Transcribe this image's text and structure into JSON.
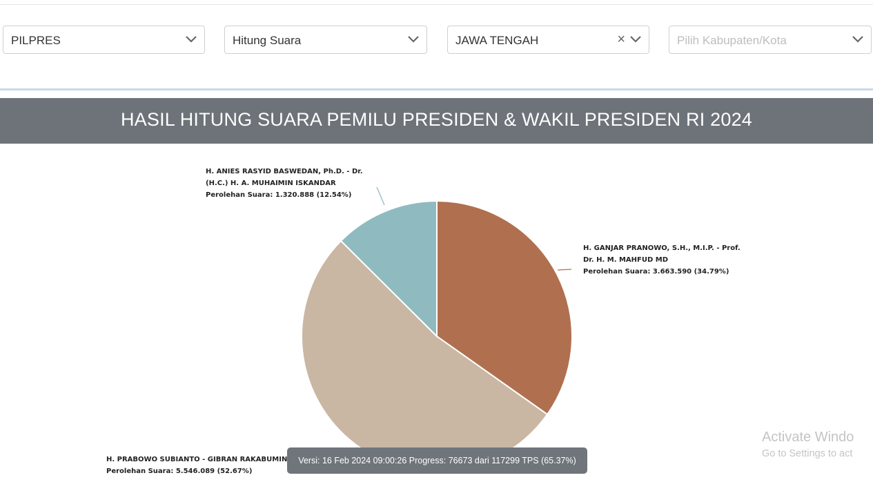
{
  "filters": {
    "election_type": "PILPRES",
    "count_type": "Hitung Suara",
    "province": "JAWA TENGAH",
    "regency_placeholder": "Pilih Kabupaten/Kota"
  },
  "header": {
    "title": "HASIL HITUNG SUARA PEMILU PRESIDEN & WAKIL PRESIDEN RI 2024"
  },
  "chart_data": {
    "type": "pie",
    "title": "HASIL HITUNG SUARA PEMILU PRESIDEN & WAKIL PRESIDEN RI 2024",
    "slices": [
      {
        "label_lines": [
          "H. GANJAR PRANOWO, S.H., M.I.P. - Prof.",
          "Dr. H. M. MAHFUD MD",
          "Perolehan Suara: 3.663.590 (34.79%)"
        ],
        "value": 3663590,
        "percent": 34.79,
        "color": "#b07050"
      },
      {
        "label_lines": [
          "H. PRABOWO SUBIANTO - GIBRAN RAKABUMING RAKA",
          "Perolehan Suara: 5.546.089 (52.67%)"
        ],
        "value": 5546089,
        "percent": 52.67,
        "color": "#c9b7a3"
      },
      {
        "label_lines": [
          "H. ANIES RASYID BASWEDAN, Ph.D. - Dr.",
          "(H.C.) H. A. MUHAIMIN ISKANDAR",
          "Perolehan Suara: 1.320.888 (12.54%)"
        ],
        "value": 1320888,
        "percent": 12.54,
        "color": "#8fbbc0"
      }
    ]
  },
  "tooltip": {
    "text": "Versi: 16 Feb 2024 09:00:26 Progress: 76673 dari 117299 TPS (65.37%)"
  },
  "watermark": {
    "line1": "Activate Windo",
    "line2": "Go to Settings to act"
  }
}
